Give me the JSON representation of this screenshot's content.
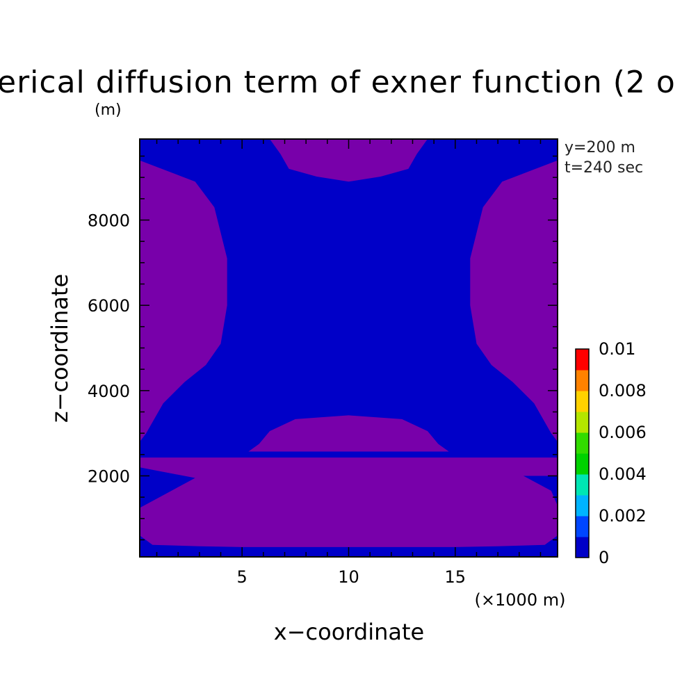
{
  "chart_data": {
    "type": "heatmap",
    "title": "erical diffusion term of exner function (2 o",
    "units": "(m)",
    "xlabel": "x−coordinate",
    "ylabel": "z−coordinate",
    "x_multiplier_label": "(×1000 m)",
    "xlim": [
      0.2,
      19.8
    ],
    "ylim": [
      100,
      9900
    ],
    "x_ticks": [
      5,
      10,
      15
    ],
    "x_tick_labels": [
      "5",
      "10",
      "15"
    ],
    "y_ticks": [
      2000,
      4000,
      6000,
      8000
    ],
    "y_tick_labels": [
      "2000",
      "4000",
      "6000",
      "8000"
    ],
    "annotations": [
      "y=200 m",
      "t=240 sec"
    ],
    "colorbar": {
      "min": 0,
      "max": 0.01,
      "tick_values": [
        0,
        0.002,
        0.004,
        0.006,
        0.008,
        0.01
      ],
      "tick_labels": [
        "0",
        "0.002",
        "0.004",
        "0.006",
        "0.008",
        "0.01"
      ],
      "colors": [
        "#0000c8",
        "#0046ff",
        "#00b4ff",
        "#00e6b4",
        "#00d200",
        "#32dc00",
        "#b4e600",
        "#ffd200",
        "#ff8200",
        "#ff0000"
      ]
    },
    "field_colors": {
      "background": "#0000c8",
      "region": "#7800aa"
    },
    "regions": [
      {
        "name": "top-center",
        "level": 1,
        "points": [
          [
            6.3,
            9900
          ],
          [
            6.8,
            9550
          ],
          [
            7.2,
            9200
          ],
          [
            8.5,
            9020
          ],
          [
            10,
            8900
          ],
          [
            11.5,
            9020
          ],
          [
            12.8,
            9200
          ],
          [
            13.2,
            9550
          ],
          [
            13.7,
            9900
          ]
        ]
      },
      {
        "name": "left",
        "level": 1,
        "points": [
          [
            0.2,
            9400
          ],
          [
            1.5,
            9150
          ],
          [
            2.8,
            8900
          ],
          [
            3.7,
            8300
          ],
          [
            4.3,
            7100
          ],
          [
            4.3,
            6000
          ],
          [
            4.0,
            5100
          ],
          [
            3.3,
            4600
          ],
          [
            2.3,
            4200
          ],
          [
            1.3,
            3700
          ],
          [
            0.5,
            3000
          ],
          [
            0.2,
            2800
          ]
        ]
      },
      {
        "name": "right",
        "level": 1,
        "points": [
          [
            19.8,
            9400
          ],
          [
            18.5,
            9150
          ],
          [
            17.2,
            8900
          ],
          [
            16.3,
            8300
          ],
          [
            15.7,
            7100
          ],
          [
            15.7,
            6000
          ],
          [
            16.0,
            5100
          ],
          [
            16.7,
            4600
          ],
          [
            17.7,
            4200
          ],
          [
            18.7,
            3700
          ],
          [
            19.5,
            3000
          ],
          [
            19.8,
            2800
          ]
        ]
      },
      {
        "name": "mid-dome",
        "level": 1,
        "points": [
          [
            5.3,
            2570
          ],
          [
            5.8,
            2750
          ],
          [
            6.3,
            3050
          ],
          [
            7.5,
            3330
          ],
          [
            10,
            3420
          ],
          [
            12.5,
            3330
          ],
          [
            13.7,
            3050
          ],
          [
            14.2,
            2750
          ],
          [
            14.7,
            2570
          ]
        ]
      },
      {
        "name": "bottom-band",
        "level": 1,
        "points": [
          [
            0.2,
            2430
          ],
          [
            19.8,
            2430
          ],
          [
            19.8,
            2000
          ],
          [
            18.2,
            2000
          ],
          [
            19.5,
            1650
          ],
          [
            19.8,
            1300
          ],
          [
            19.8,
            600
          ],
          [
            19.2,
            380
          ],
          [
            17,
            350
          ],
          [
            15,
            330
          ],
          [
            10,
            330
          ],
          [
            5,
            330
          ],
          [
            3,
            350
          ],
          [
            0.8,
            380
          ],
          [
            0.2,
            600
          ],
          [
            0.2,
            1250
          ],
          [
            1.5,
            1600
          ],
          [
            2.8,
            1950
          ],
          [
            0.2,
            2200
          ]
        ]
      }
    ]
  }
}
